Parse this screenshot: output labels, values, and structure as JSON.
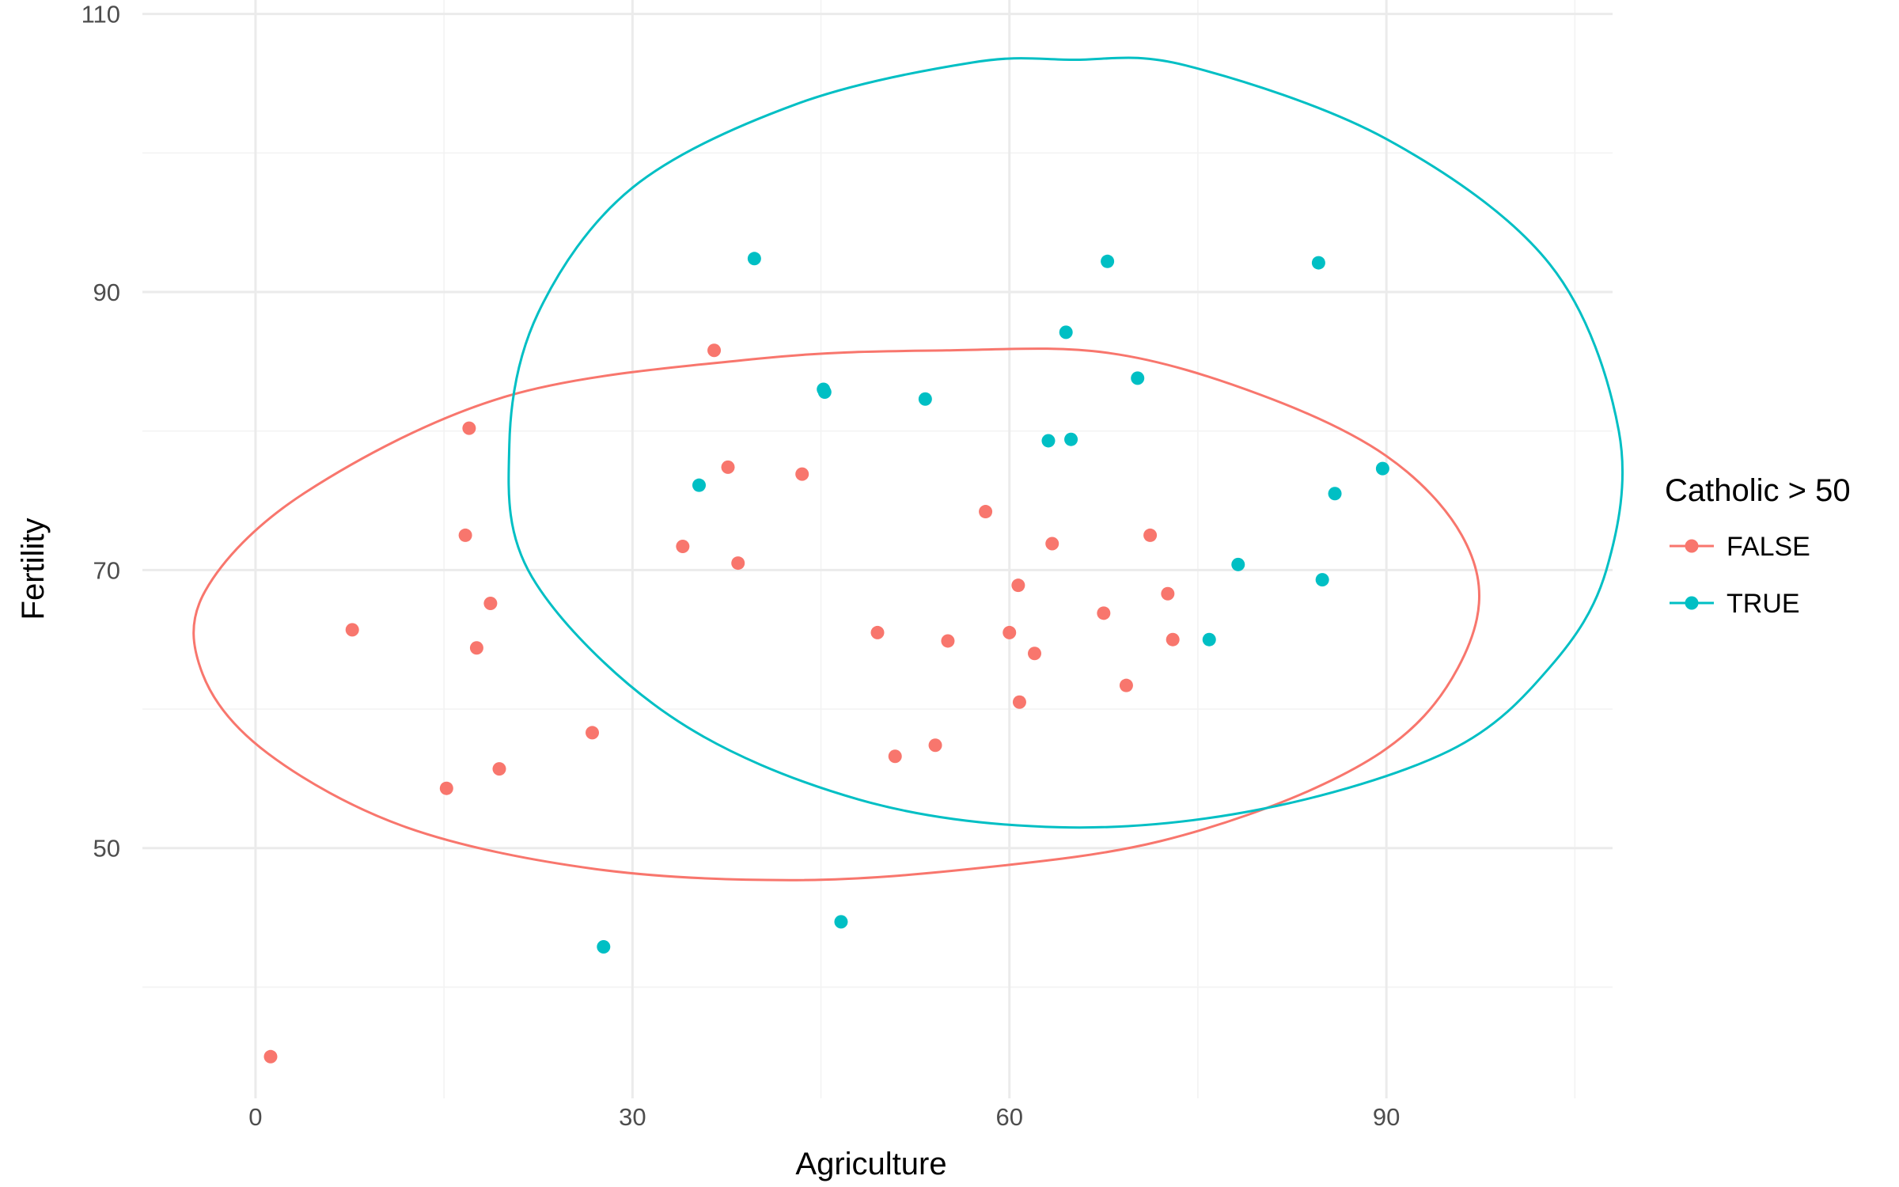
{
  "chart_data": {
    "type": "scatter",
    "title": "",
    "xlabel": "Agriculture",
    "ylabel": "Fertility",
    "xlim": [
      -9,
      108
    ],
    "ylim": [
      32,
      111
    ],
    "x_ticks": [
      0,
      30,
      60,
      90
    ],
    "y_ticks": [
      50,
      70,
      90,
      110
    ],
    "x_minor": [
      15,
      45,
      75,
      105
    ],
    "y_minor": [
      40,
      60,
      80,
      100
    ],
    "grid": true,
    "legend": {
      "title": "Catholic > 50",
      "position": "right",
      "entries": [
        {
          "label": "FALSE",
          "color": "#f8766d"
        },
        {
          "label": "TRUE",
          "color": "#00bfc4"
        }
      ]
    },
    "series": [
      {
        "name": "FALSE",
        "color": "#f8766d",
        "points": [
          [
            1.2,
            35.0
          ],
          [
            7.7,
            65.7
          ],
          [
            15.2,
            54.3
          ],
          [
            16.7,
            72.5
          ],
          [
            17.0,
            80.2
          ],
          [
            17.6,
            64.4
          ],
          [
            18.7,
            67.6
          ],
          [
            19.4,
            55.7
          ],
          [
            26.8,
            58.3
          ],
          [
            34.0,
            71.7
          ],
          [
            36.5,
            85.8
          ],
          [
            37.6,
            77.4
          ],
          [
            38.4,
            70.5
          ],
          [
            43.5,
            76.9
          ],
          [
            49.5,
            65.5
          ],
          [
            50.9,
            56.6
          ],
          [
            54.1,
            57.4
          ],
          [
            55.1,
            64.9
          ],
          [
            58.1,
            74.2
          ],
          [
            60.0,
            65.5
          ],
          [
            60.7,
            68.9
          ],
          [
            60.8,
            60.5
          ],
          [
            62.0,
            64.0
          ],
          [
            63.4,
            71.9
          ],
          [
            67.5,
            66.9
          ],
          [
            69.3,
            61.7
          ],
          [
            71.2,
            72.5
          ],
          [
            72.6,
            68.3
          ],
          [
            73.0,
            65.0
          ]
        ]
      },
      {
        "name": "TRUE",
        "color": "#00bfc4",
        "points": [
          [
            27.7,
            42.9
          ],
          [
            35.3,
            76.1
          ],
          [
            39.7,
            92.4
          ],
          [
            45.2,
            83.0
          ],
          [
            45.3,
            82.8
          ],
          [
            46.6,
            44.7
          ],
          [
            53.3,
            82.3
          ],
          [
            63.1,
            79.3
          ],
          [
            64.5,
            87.1
          ],
          [
            64.9,
            79.4
          ],
          [
            67.8,
            92.2
          ],
          [
            70.2,
            83.8
          ],
          [
            75.9,
            65.0
          ],
          [
            78.2,
            70.4
          ],
          [
            84.6,
            92.1
          ],
          [
            84.9,
            69.3
          ],
          [
            85.9,
            75.5
          ],
          [
            89.7,
            77.3
          ]
        ]
      }
    ],
    "ellipses": [
      {
        "series": "FALSE",
        "color": "#f8766d",
        "points": [
          [
            68,
            85.6
          ],
          [
            80,
            82.6
          ],
          [
            90,
            78.2
          ],
          [
            96,
            72.5
          ],
          [
            97.2,
            66.5
          ],
          [
            93,
            59.5
          ],
          [
            85,
            54.6
          ],
          [
            72,
            50.5
          ],
          [
            58,
            48.6
          ],
          [
            43,
            47.7
          ],
          [
            27,
            48.5
          ],
          [
            12,
            51.5
          ],
          [
            1,
            56.8
          ],
          [
            -4.2,
            62.5
          ],
          [
            -4.0,
            68.5
          ],
          [
            4,
            75.6
          ],
          [
            20,
            82.5
          ],
          [
            40,
            85.2
          ],
          [
            55,
            85.8
          ]
        ]
      },
      {
        "series": "TRUE",
        "color": "#00bfc4",
        "points": [
          [
            74,
            106.3
          ],
          [
            90,
            101.0
          ],
          [
            103,
            92.0
          ],
          [
            108.5,
            80.0
          ],
          [
            107.5,
            70.0
          ],
          [
            103,
            63.0
          ],
          [
            95,
            57.0
          ],
          [
            80,
            52.8
          ],
          [
            64,
            51.5
          ],
          [
            48,
            53.5
          ],
          [
            33,
            59.5
          ],
          [
            22,
            69.5
          ],
          [
            20.2,
            79.0
          ],
          [
            22.5,
            88.5
          ],
          [
            30,
            97.5
          ],
          [
            43,
            103.5
          ],
          [
            57,
            106.5
          ],
          [
            65,
            106.7
          ]
        ]
      }
    ]
  }
}
